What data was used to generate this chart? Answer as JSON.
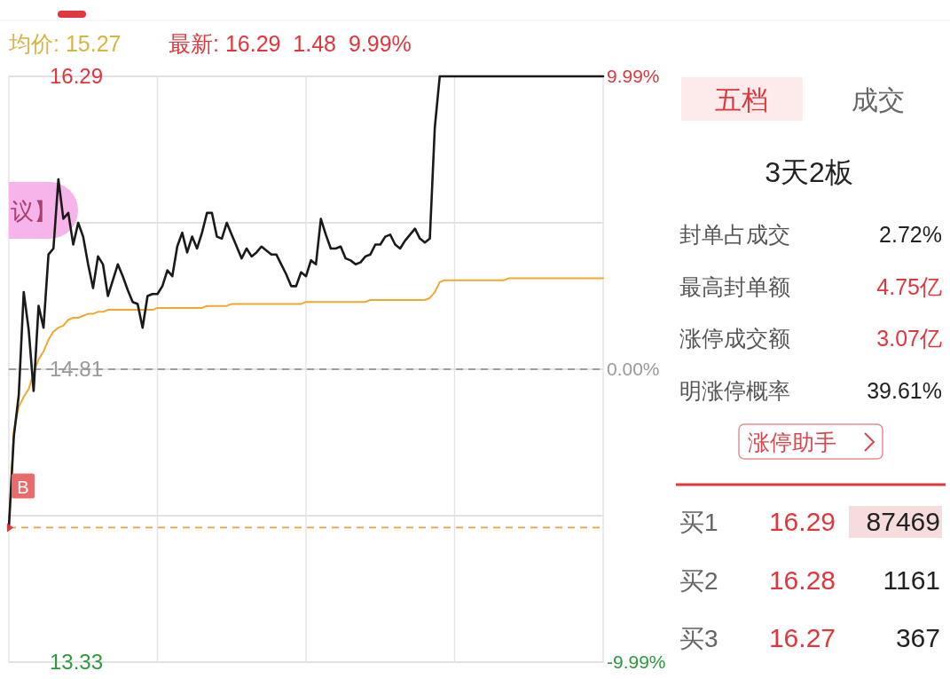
{
  "chart_data": [
    {
      "type": "line",
      "title": "均价: 15.27",
      "subtitle": "最新: 16.29  1.48  9.99%",
      "categories": [
        null,
        null,
        null,
        null,
        null,
        null,
        null,
        null,
        null,
        null,
        null,
        null,
        null,
        null,
        null,
        null,
        null,
        null,
        null,
        null,
        null,
        null,
        null,
        null,
        null,
        null,
        null,
        null,
        null,
        null,
        null,
        null,
        null,
        null,
        null,
        null,
        null,
        null,
        null,
        null,
        null,
        null,
        null,
        null,
        null,
        null,
        null,
        null,
        null,
        null,
        null,
        null,
        null,
        null,
        null,
        null,
        null,
        null,
        null,
        null,
        null,
        null,
        null,
        null,
        null,
        null,
        null,
        null,
        null,
        null,
        null,
        null,
        null,
        null,
        null,
        null,
        null,
        null,
        null,
        null,
        null,
        null,
        null,
        null,
        null,
        null,
        null,
        null,
        null,
        null,
        null,
        null,
        null,
        null,
        null,
        null,
        null,
        null,
        null,
        null,
        null,
        null,
        null,
        null,
        null,
        null,
        null,
        null,
        null,
        null,
        null,
        null,
        null,
        null,
        null,
        null,
        null,
        null,
        null,
        null,
        null
      ],
      "series": [
        {
          "color": "#f0a830",
          "values": [
            14.01,
            14.5,
            14.62,
            14.67,
            14.71,
            14.79,
            14.86,
            14.9,
            14.96,
            15.0,
            15.02,
            15.03,
            15.06,
            15.07,
            15.07,
            15.08,
            15.09,
            15.09,
            15.1,
            15.1,
            15.11,
            15.11,
            15.11,
            15.11,
            15.11,
            15.11,
            15.11,
            15.11,
            15.11,
            15.11,
            15.12,
            15.12,
            15.12,
            15.12,
            15.12,
            15.12,
            15.12,
            15.12,
            15.12,
            15.12,
            15.13,
            15.13,
            15.13,
            15.13,
            15.13,
            15.14,
            15.14,
            15.14,
            15.14,
            15.14,
            15.14,
            15.14,
            15.14,
            15.14,
            15.14,
            15.14,
            15.14,
            15.14,
            15.14,
            15.14,
            15.15,
            15.15,
            15.15,
            15.15,
            15.15,
            15.15,
            15.15,
            15.15,
            15.15,
            15.15,
            15.15,
            15.15,
            15.15,
            15.16,
            15.16,
            15.16,
            15.16,
            15.16,
            15.16,
            15.16,
            15.16,
            15.16,
            15.16,
            15.16,
            15.16,
            15.17,
            15.2,
            15.25,
            15.26,
            15.26,
            15.26,
            15.26,
            15.26,
            15.26,
            15.26,
            15.26,
            15.26,
            15.26,
            15.26,
            15.26,
            15.26,
            15.27,
            15.27,
            15.27,
            15.27,
            15.27,
            15.27,
            15.27,
            15.27,
            15.27,
            15.27,
            15.27,
            15.27,
            15.27,
            15.27,
            15.27,
            15.27,
            15.27,
            15.27,
            15.27,
            15.27
          ]
        },
        {
          "color": "#1a1a1a",
          "values": [
            14.01,
            14.47,
            14.68,
            15.2,
            15.01,
            14.7,
            15.13,
            15.02,
            15.39,
            15.42,
            15.77,
            15.57,
            15.6,
            15.44,
            15.55,
            15.48,
            15.34,
            15.22,
            15.38,
            15.34,
            15.18,
            15.26,
            15.34,
            15.28,
            15.21,
            15.15,
            15.14,
            15.02,
            15.18,
            15.19,
            15.19,
            15.23,
            15.31,
            15.28,
            15.43,
            15.5,
            15.4,
            15.48,
            15.42,
            15.5,
            15.6,
            15.6,
            15.48,
            15.47,
            15.55,
            15.49,
            15.43,
            15.37,
            15.42,
            15.38,
            15.4,
            15.43,
            15.41,
            15.39,
            15.39,
            15.34,
            15.29,
            15.23,
            15.23,
            15.3,
            15.28,
            15.36,
            15.34,
            15.57,
            15.49,
            15.42,
            15.42,
            15.43,
            15.37,
            15.36,
            15.34,
            15.35,
            15.38,
            15.39,
            15.44,
            15.44,
            15.48,
            15.49,
            15.44,
            15.42,
            15.46,
            15.49,
            15.52,
            15.47,
            15.45,
            15.47,
            16.03,
            16.29,
            16.29,
            16.29,
            16.29,
            16.29,
            16.29,
            16.29,
            16.29,
            16.29,
            16.29,
            16.29,
            16.29,
            16.29,
            16.29,
            16.29,
            16.29,
            16.29,
            16.29,
            16.29,
            16.29,
            16.29,
            16.29,
            16.29,
            16.29,
            16.29,
            16.29,
            16.29,
            16.29,
            16.29,
            16.29,
            16.29,
            16.29,
            16.29,
            16.29
          ]
        }
      ],
      "ylim": [
        13.33,
        16.29
      ],
      "yticks": [
        13.33,
        {
          "value": 14.07,
          "label": null
        },
        14.81,
        {
          "value": 15.55,
          "label": null
        },
        16.29
      ],
      "y2lim": [
        -9.99,
        9.99
      ],
      "y2ticks": [
        {
          "value": -9.99,
          "label": "-9.99%"
        },
        {
          "value": 0,
          "label": "0.00%"
        },
        {
          "value": 9.99,
          "label": "9.99%"
        }
      ],
      "grid": true,
      "ref_lines": [
        {
          "axis": "y",
          "value": 14.81,
          "color": "#a0a0a0",
          "line_style": "dashed"
        },
        {
          "axis": "y",
          "value": 14.01,
          "color": "#f0a040",
          "line_style": "dashed"
        }
      ],
      "annotations": [
        {
          "text": "B",
          "y": 14.01
        },
        "议】"
      ]
    },
    {
      "type": "other",
      "title": "3天2板",
      "annotations": [
        "五档",
        "成交",
        "封单占成交",
        "2.72%",
        "最高封单额",
        "4.75亿",
        "涨停成交额",
        "3.07亿",
        "明涨停概率",
        "39.61%",
        "涨停助手",
        "买1",
        "16.29",
        "87469",
        "买2",
        "16.28",
        "1161",
        "买3",
        "16.27",
        "367"
      ]
    }
  ]
}
